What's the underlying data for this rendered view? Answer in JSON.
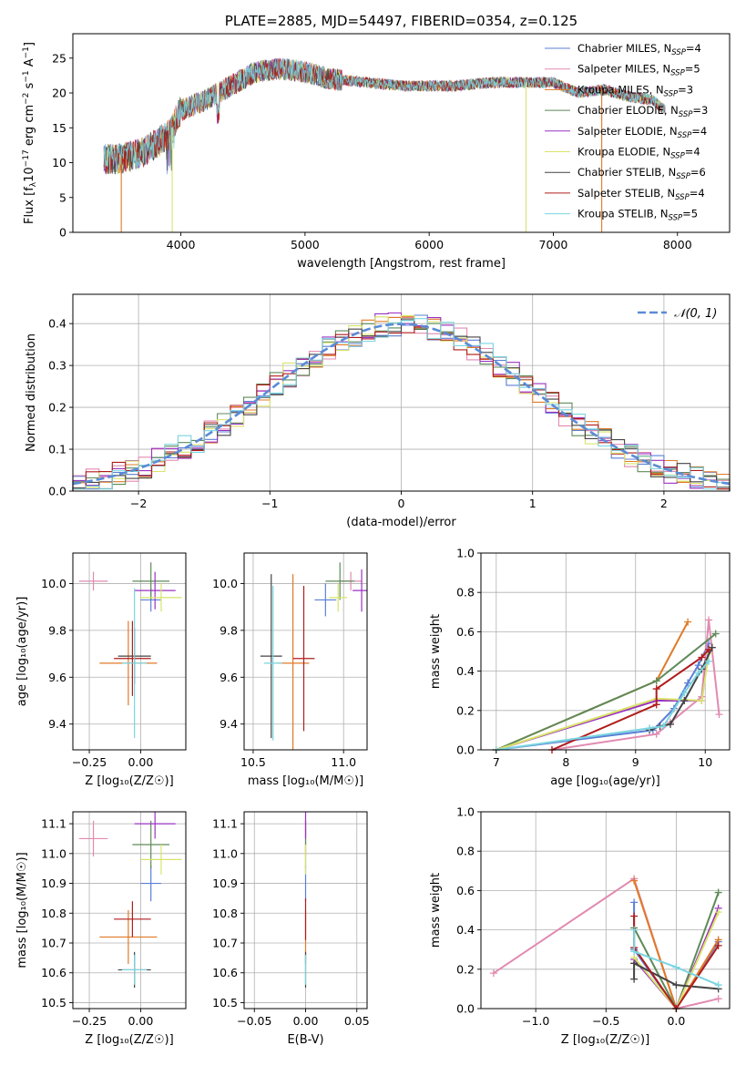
{
  "chart_data": [
    {
      "type": "line",
      "title": "PLATE=2885, MJD=54497, FIBERID=0354, z=0.125",
      "xlabel": "wavelength [Angstrom, rest frame]",
      "ylabel_parts": [
        "Flux [f",
        "λ",
        "10",
        "−17",
        " erg cm",
        "−2",
        " s",
        "−1",
        " A",
        "−1",
        "]"
      ],
      "xlim": [
        3130,
        8420
      ],
      "ylim": [
        0,
        28.5
      ],
      "xticks": [
        4000,
        5000,
        6000,
        7000,
        8000
      ],
      "yticks": [
        0,
        5,
        10,
        15,
        20,
        25
      ],
      "series": [
        {
          "name": "Chabrier MILES, N",
          "sub": "SSP",
          "suffix": "=4",
          "color": "#5b7fd6"
        },
        {
          "name": "Salpeter MILES, N",
          "sub": "SSP",
          "suffix": "=5",
          "color": "#e28ab0"
        },
        {
          "name": "Kroupa MILES, N",
          "sub": "SSP",
          "suffix": "=3",
          "color": "#e07a27"
        },
        {
          "name": "Chabrier ELODIE, N",
          "sub": "SSP",
          "suffix": "=3",
          "color": "#5e8a58"
        },
        {
          "name": "Salpeter ELODIE, N",
          "sub": "SSP",
          "suffix": "=4",
          "color": "#9b32c2"
        },
        {
          "name": "Kroupa ELODIE, N",
          "sub": "SSP",
          "suffix": "=4",
          "color": "#d9e36a"
        },
        {
          "name": "Chabrier STELIB, N",
          "sub": "SSP",
          "suffix": "=6",
          "color": "#444444"
        },
        {
          "name": "Salpeter STELIB, N",
          "sub": "SSP",
          "suffix": "=4",
          "color": "#b01c1c"
        },
        {
          "name": "Kroupa STELIB, N",
          "sub": "SSP",
          "suffix": "=5",
          "color": "#7ad4e0"
        }
      ],
      "continuum": [
        [
          3380,
          10.5
        ],
        [
          3500,
          10.5
        ],
        [
          3700,
          11.5
        ],
        [
          3900,
          14
        ],
        [
          4000,
          17.5
        ],
        [
          4200,
          19
        ],
        [
          4400,
          21
        ],
        [
          4600,
          23
        ],
        [
          4800,
          23.5
        ],
        [
          5000,
          23
        ],
        [
          5200,
          22
        ],
        [
          5500,
          21.5
        ],
        [
          5800,
          21
        ],
        [
          6200,
          21
        ],
        [
          6500,
          21.5
        ],
        [
          6800,
          21.5
        ],
        [
          7000,
          21.5
        ],
        [
          7200,
          20
        ],
        [
          7400,
          20.5
        ],
        [
          7600,
          19.5
        ],
        [
          7800,
          19
        ],
        [
          7900,
          17.5
        ]
      ],
      "drops": [
        [
          3520,
          2
        ],
        [
          3930,
          5
        ],
        [
          6780,
          6
        ],
        [
          7390,
          1
        ]
      ]
    },
    {
      "type": "histogram",
      "xlabel": "(data-model)/error",
      "ylabel": "Normed distribution",
      "xlim": [
        -2.5,
        2.5
      ],
      "ylim": [
        0,
        0.47
      ],
      "xticks": [
        -2,
        -1,
        0,
        1,
        2
      ],
      "xtick_labels": [
        "−2",
        "−1",
        "0",
        "1",
        "2"
      ],
      "yticks": [
        0,
        0.1,
        0.2,
        0.3,
        0.4
      ],
      "ytick_labels": [
        "0.0",
        "0.1",
        "0.2",
        "0.3",
        "0.4"
      ],
      "bins": 50,
      "reference_label": "𝒩(0, 1)",
      "reference_color": "#5b8bd6"
    },
    {
      "type": "errorbar",
      "xlabel": "Z [log₁₀(Z/Z☉)]",
      "ylabel": "age  [log₁₀(age/yr)]",
      "xlim": [
        -0.33,
        0.22
      ],
      "ylim": [
        9.29,
        10.13
      ],
      "xticks": [
        -0.25,
        0.0
      ],
      "xtick_labels": [
        "−0.25",
        "0.00"
      ],
      "yticks": [
        9.4,
        9.6,
        9.8,
        10.0
      ],
      "ytick_labels": [
        "9.4",
        "9.6",
        "9.8",
        "10.0"
      ],
      "points": [
        {
          "x": 0.05,
          "y": 9.93,
          "xerr": 0.05,
          "yerr": 0.05,
          "color": "#5b7fd6"
        },
        {
          "x": -0.23,
          "y": 10.01,
          "xerr": 0.07,
          "yerr": 0.04,
          "color": "#e28ab0"
        },
        {
          "x": -0.06,
          "y": 9.66,
          "xerr": 0.14,
          "yerr": 0.18,
          "color": "#e07a27"
        },
        {
          "x": 0.05,
          "y": 10.01,
          "xerr": 0.09,
          "yerr": 0.08,
          "color": "#5e8a58"
        },
        {
          "x": 0.07,
          "y": 9.97,
          "xerr": 0.1,
          "yerr": 0.08,
          "color": "#9b32c2"
        },
        {
          "x": 0.1,
          "y": 9.94,
          "xerr": 0.1,
          "yerr": 0.06,
          "color": "#d9e36a"
        },
        {
          "x": -0.03,
          "y": 9.69,
          "xerr": 0.08,
          "yerr": 0.12,
          "color": "#444444"
        },
        {
          "x": -0.04,
          "y": 9.68,
          "xerr": 0.09,
          "yerr": 0.16,
          "color": "#b01c1c"
        },
        {
          "x": -0.03,
          "y": 9.66,
          "xerr": 0.06,
          "yerr": 0.32,
          "color": "#7ad4e0"
        }
      ]
    },
    {
      "type": "errorbar",
      "xlabel": "mass [log₁₀(M/M☉)]",
      "ylabel": "",
      "xlim": [
        10.45,
        11.13
      ],
      "ylim": [
        9.29,
        10.13
      ],
      "xticks": [
        10.5,
        11.0
      ],
      "xtick_labels": [
        "10.5",
        "11.0"
      ],
      "yticks": [
        9.4,
        9.6,
        9.8,
        10.0
      ],
      "ytick_labels": [
        "9.4",
        "9.6",
        "9.8",
        "10.0"
      ],
      "points": [
        {
          "x": 10.9,
          "y": 9.93,
          "xerr": 0.06,
          "yerr": 0.07,
          "color": "#5b7fd6"
        },
        {
          "x": 11.04,
          "y": 10.01,
          "xerr": 0.06,
          "yerr": 0.04,
          "color": "#e28ab0"
        },
        {
          "x": 10.72,
          "y": 9.66,
          "xerr": 0.09,
          "yerr": 0.38,
          "color": "#e07a27"
        },
        {
          "x": 10.98,
          "y": 10.01,
          "xerr": 0.08,
          "yerr": 0.08,
          "color": "#5e8a58"
        },
        {
          "x": 11.1,
          "y": 9.97,
          "xerr": 0.05,
          "yerr": 0.09,
          "color": "#9b32c2"
        },
        {
          "x": 10.97,
          "y": 9.94,
          "xerr": 0.05,
          "yerr": 0.06,
          "color": "#d9e36a"
        },
        {
          "x": 10.6,
          "y": 9.69,
          "xerr": 0.06,
          "yerr": 0.35,
          "color": "#444444"
        },
        {
          "x": 10.78,
          "y": 9.68,
          "xerr": 0.06,
          "yerr": 0.31,
          "color": "#b01c1c"
        },
        {
          "x": 10.61,
          "y": 9.66,
          "xerr": 0.05,
          "yerr": 0.33,
          "color": "#7ad4e0"
        }
      ]
    },
    {
      "type": "line",
      "xlabel": "age  [log₁₀(age/yr)]",
      "ylabel": "mass weight",
      "xlim": [
        6.78,
        10.35
      ],
      "ylim": [
        0,
        1.0
      ],
      "xticks": [
        7,
        8,
        9,
        10
      ],
      "xtick_labels": [
        "7",
        "8",
        "9",
        "10"
      ],
      "yticks": [
        0,
        0.2,
        0.4,
        0.6,
        0.8,
        1.0
      ],
      "ytick_labels": [
        "0.0",
        "0.2",
        "0.4",
        "0.6",
        "0.8",
        "1.0"
      ],
      "series": [
        {
          "color": "#5b7fd6",
          "x": [
            7.0,
            9.25,
            9.55,
            9.75,
            9.9,
            10.05
          ],
          "y": [
            0.0,
            0.1,
            0.21,
            0.34,
            0.43,
            0.54
          ]
        },
        {
          "color": "#e28ab0",
          "x": [
            7.8,
            9.3,
            9.5,
            9.95,
            10.05,
            10.2
          ],
          "y": [
            0.0,
            0.08,
            0.14,
            0.27,
            0.66,
            0.18
          ]
        },
        {
          "color": "#e07a27",
          "x": [
            7.0,
            9.3,
            9.75
          ],
          "y": [
            0.0,
            0.35,
            0.65
          ]
        },
        {
          "color": "#5e8a58",
          "x": [
            7.0,
            9.3,
            10.15
          ],
          "y": [
            0.0,
            0.35,
            0.59
          ]
        },
        {
          "color": "#9b32c2",
          "x": [
            7.0,
            9.3,
            9.95,
            10.05
          ],
          "y": [
            0.0,
            0.25,
            0.25,
            0.51
          ]
        },
        {
          "color": "#d9e36a",
          "x": [
            7.0,
            9.3,
            9.95,
            10.05
          ],
          "y": [
            0.0,
            0.26,
            0.25,
            0.49
          ]
        },
        {
          "color": "#444444",
          "x": [
            9.2,
            9.35,
            9.5,
            9.7,
            9.95,
            10.1
          ],
          "y": [
            0.1,
            0.12,
            0.13,
            0.25,
            0.41,
            0.52
          ]
        },
        {
          "color": "#b01c1c",
          "x": [
            7.8,
            9.3,
            9.3,
            9.95,
            10.05
          ],
          "y": [
            0.0,
            0.23,
            0.31,
            0.47,
            0.51
          ]
        },
        {
          "color": "#7ad4e0",
          "x": [
            7.0,
            9.2,
            9.4,
            9.7,
            9.9,
            10.05
          ],
          "y": [
            0.0,
            0.11,
            0.12,
            0.29,
            0.39,
            0.45
          ]
        }
      ]
    },
    {
      "type": "errorbar",
      "xlabel": "Z [log₁₀(Z/Z☉)]",
      "ylabel": "mass [log₁₀(M/M☉)]",
      "xlim": [
        -0.33,
        0.22
      ],
      "ylim": [
        10.48,
        11.14
      ],
      "xticks": [
        -0.25,
        0.0
      ],
      "xtick_labels": [
        "−0.25",
        "0.00"
      ],
      "yticks": [
        10.5,
        10.6,
        10.7,
        10.8,
        10.9,
        11.0,
        11.1
      ],
      "ytick_labels": [
        "10.5",
        "10.6",
        "10.7",
        "10.8",
        "10.9",
        "11.0",
        "11.1"
      ],
      "points": [
        {
          "x": 0.05,
          "y": 10.9,
          "xerr": 0.05,
          "yerr": 0.06,
          "color": "#5b7fd6"
        },
        {
          "x": -0.23,
          "y": 11.05,
          "xerr": 0.07,
          "yerr": 0.06,
          "color": "#e28ab0"
        },
        {
          "x": -0.06,
          "y": 10.72,
          "xerr": 0.14,
          "yerr": 0.09,
          "color": "#e07a27"
        },
        {
          "x": 0.05,
          "y": 11.03,
          "xerr": 0.09,
          "yerr": 0.08,
          "color": "#5e8a58"
        },
        {
          "x": 0.07,
          "y": 11.1,
          "xerr": 0.1,
          "yerr": 0.05,
          "color": "#9b32c2"
        },
        {
          "x": 0.1,
          "y": 10.98,
          "xerr": 0.1,
          "yerr": 0.05,
          "color": "#d9e36a"
        },
        {
          "x": -0.03,
          "y": 10.61,
          "xerr": 0.08,
          "yerr": 0.06,
          "color": "#444444"
        },
        {
          "x": -0.04,
          "y": 10.78,
          "xerr": 0.09,
          "yerr": 0.06,
          "color": "#b01c1c"
        },
        {
          "x": -0.03,
          "y": 10.61,
          "xerr": 0.06,
          "yerr": 0.05,
          "color": "#7ad4e0"
        }
      ]
    },
    {
      "type": "errorbar",
      "xlabel": "E(B-V)",
      "ylabel": "",
      "xlim": [
        -0.06,
        0.06
      ],
      "ylim": [
        10.48,
        11.14
      ],
      "xticks": [
        -0.05,
        0.0,
        0.05
      ],
      "xtick_labels": [
        "−0.05",
        "0.00",
        "0.05"
      ],
      "yticks": [
        10.5,
        10.6,
        10.7,
        10.8,
        10.9,
        11.0,
        11.1
      ],
      "ytick_labels": [
        "10.5",
        "10.6",
        "10.7",
        "10.8",
        "10.9",
        "11.0",
        "11.1"
      ],
      "points": [
        {
          "x": 0.0,
          "y": 10.9,
          "xerr": 0,
          "yerr": 0.06,
          "color": "#5b7fd6"
        },
        {
          "x": 0.0,
          "y": 11.05,
          "xerr": 0,
          "yerr": 0.06,
          "color": "#e28ab0"
        },
        {
          "x": 0.0,
          "y": 10.72,
          "xerr": 0,
          "yerr": 0.09,
          "color": "#e07a27"
        },
        {
          "x": 0.0,
          "y": 11.03,
          "xerr": 0,
          "yerr": 0.08,
          "color": "#5e8a58"
        },
        {
          "x": 0.0,
          "y": 11.1,
          "xerr": 0,
          "yerr": 0.05,
          "color": "#9b32c2"
        },
        {
          "x": 0.0,
          "y": 10.98,
          "xerr": 0,
          "yerr": 0.05,
          "color": "#d9e36a"
        },
        {
          "x": 0.0,
          "y": 10.61,
          "xerr": 0,
          "yerr": 0.06,
          "color": "#444444"
        },
        {
          "x": 0.0,
          "y": 10.78,
          "xerr": 0,
          "yerr": 0.07,
          "color": "#b01c1c"
        },
        {
          "x": 0.0,
          "y": 10.61,
          "xerr": 0,
          "yerr": 0.05,
          "color": "#7ad4e0"
        }
      ]
    },
    {
      "type": "line",
      "xlabel": "Z [log₁₀(Z/Z☉)]",
      "ylabel": "mass weight",
      "xlim": [
        -1.39,
        0.38
      ],
      "ylim": [
        0,
        1.0
      ],
      "xticks": [
        -1.0,
        -0.5,
        0.0
      ],
      "xtick_labels": [
        "−1.0",
        "−0.5",
        "0.0"
      ],
      "yticks": [
        0,
        0.2,
        0.4,
        0.6,
        0.8,
        1.0
      ],
      "ytick_labels": [
        "0.0",
        "0.2",
        "0.4",
        "0.6",
        "0.8",
        "1.0"
      ],
      "series": [
        {
          "color": "#5b7fd6",
          "x": [
            -0.3,
            -0.3,
            0.0,
            0.3
          ],
          "y": [
            0.54,
            0.3,
            0.0,
            0.34
          ]
        },
        {
          "color": "#e28ab0",
          "x": [
            -1.3,
            -0.3,
            0.0,
            0.3
          ],
          "y": [
            0.18,
            0.66,
            0.0,
            0.05
          ]
        },
        {
          "color": "#e07a27",
          "x": [
            -0.3,
            0.0,
            0.3
          ],
          "y": [
            0.65,
            0.0,
            0.35
          ]
        },
        {
          "color": "#5e8a58",
          "x": [
            -0.3,
            0.0,
            0.3
          ],
          "y": [
            0.41,
            0.0,
            0.59
          ]
        },
        {
          "color": "#9b32c2",
          "x": [
            -0.3,
            0.0,
            0.3
          ],
          "y": [
            0.25,
            0.0,
            0.51
          ]
        },
        {
          "color": "#d9e36a",
          "x": [
            -0.3,
            0.0,
            0.3
          ],
          "y": [
            0.26,
            0.0,
            0.49
          ]
        },
        {
          "color": "#444444",
          "x": [
            -0.3,
            -0.3,
            0.0,
            0.3
          ],
          "y": [
            0.15,
            0.23,
            0.12,
            0.1
          ]
        },
        {
          "color": "#b01c1c",
          "x": [
            -0.3,
            -0.3,
            0.0,
            0.3
          ],
          "y": [
            0.47,
            0.31,
            0.0,
            0.32
          ]
        },
        {
          "color": "#7ad4e0",
          "x": [
            -0.3,
            -0.3,
            0.0,
            0.3
          ],
          "y": [
            0.4,
            0.29,
            0.21,
            0.12
          ]
        }
      ]
    }
  ]
}
